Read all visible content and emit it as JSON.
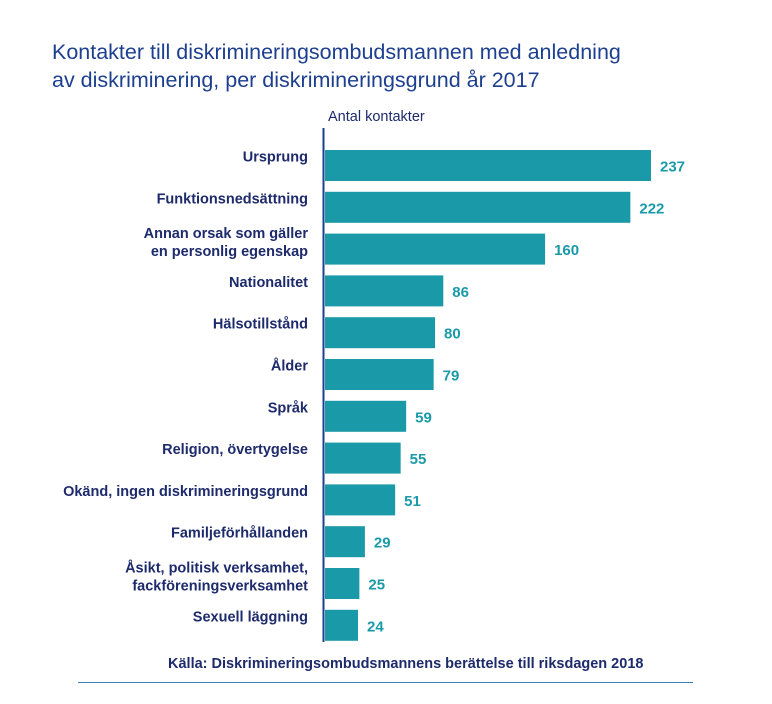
{
  "title_lines": [
    "Kontakter till diskrimineringsombudsmannen med anledning",
    "av diskriminering, per diskrimineringsgrund år 2017"
  ],
  "source": "Källa: Diskrimineringsombudsmannens berättelse till riksdagen 2018",
  "colors": {
    "bar": "#1a9aa8",
    "axis": "#1d3f8f",
    "title": "#1d3f8f",
    "text": "#1d2a6b",
    "value": "#1a9aa8",
    "rule": "#3a7fb8"
  },
  "chart_data": {
    "type": "bar",
    "orientation": "horizontal",
    "ylabel": "Antal kontakter",
    "categories": [
      [
        "Ursprung"
      ],
      [
        "Funktionsnedsättning"
      ],
      [
        "Annan orsak som gäller",
        "en personlig egenskap"
      ],
      [
        "Nationalitet"
      ],
      [
        "Hälsotillstånd"
      ],
      [
        "Ålder"
      ],
      [
        "Språk"
      ],
      [
        "Religion, övertygelse"
      ],
      [
        "Okänd, ingen diskrimineringsgrund"
      ],
      [
        "Familjeförhållanden"
      ],
      [
        "Åsikt, politisk verksamhet,",
        "fackföreningsverksamhet"
      ],
      [
        "Sexuell läggning"
      ]
    ],
    "values": [
      237,
      222,
      160,
      86,
      80,
      79,
      59,
      55,
      51,
      29,
      25,
      24
    ],
    "xlim": [
      0,
      237
    ],
    "grid": false,
    "data_labels": true
  }
}
